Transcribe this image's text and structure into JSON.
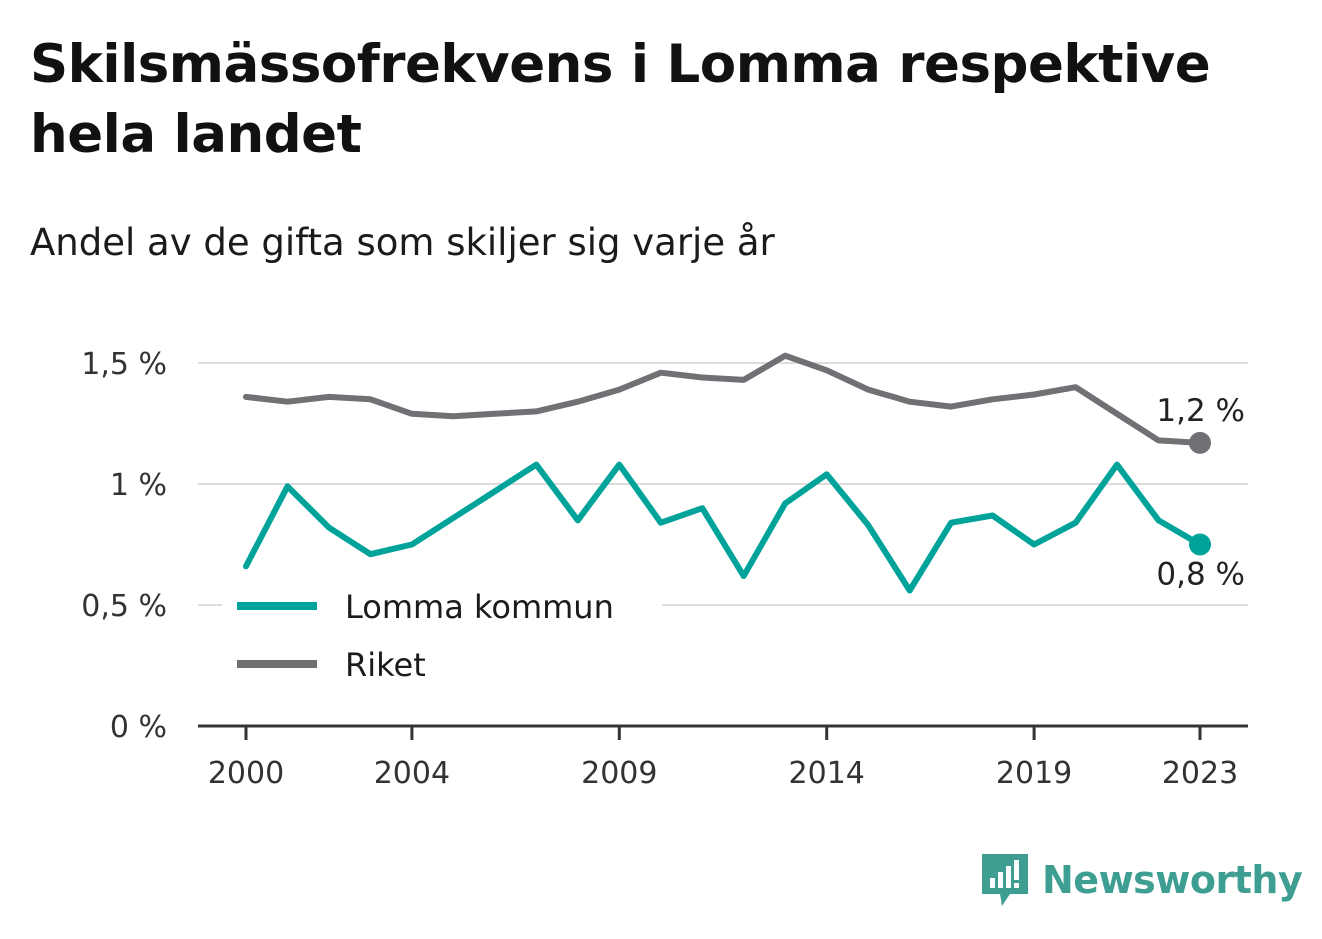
{
  "header": {
    "title": "Skilsmässofrekvens i Lomma respektive hela landet",
    "subtitle": "Andel av de gifta som skiljer sig varje år"
  },
  "brand": {
    "name": "Newsworthy",
    "color": "#3e9e92"
  },
  "chart_data": {
    "type": "line",
    "title": "Skilsmässofrekvens i Lomma respektive hela landet",
    "subtitle": "Andel av de gifta som skiljer sig varje år",
    "x": [
      2000,
      2001,
      2002,
      2003,
      2004,
      2005,
      2006,
      2007,
      2008,
      2009,
      2010,
      2011,
      2012,
      2013,
      2014,
      2015,
      2016,
      2017,
      2018,
      2019,
      2020,
      2021,
      2022,
      2023
    ],
    "x_ticks": [
      "2000",
      "2004",
      "2009",
      "2014",
      "2019",
      "2023"
    ],
    "y_ticks": [
      "0 %",
      "0,5 %",
      "1 %",
      "1,5 %"
    ],
    "ylim": [
      0,
      1.5
    ],
    "grid": true,
    "legend_position": "bottom-left",
    "series": [
      {
        "name": "Lomma kommun",
        "color": "#00a39a",
        "values": [
          0.66,
          0.99,
          0.82,
          0.71,
          0.75,
          0.86,
          0.97,
          1.08,
          0.85,
          1.08,
          0.84,
          0.9,
          0.62,
          0.92,
          1.04,
          0.83,
          0.56,
          0.84,
          0.87,
          0.75,
          0.84,
          1.08,
          0.85,
          0.75
        ],
        "end_label": "0,8 %"
      },
      {
        "name": "Riket",
        "color": "#707075",
        "values": [
          1.36,
          1.34,
          1.36,
          1.35,
          1.29,
          1.28,
          1.29,
          1.3,
          1.34,
          1.39,
          1.46,
          1.44,
          1.43,
          1.53,
          1.47,
          1.39,
          1.34,
          1.32,
          1.35,
          1.37,
          1.4,
          1.29,
          1.18,
          1.17
        ],
        "end_label": "1,2 %"
      }
    ]
  }
}
